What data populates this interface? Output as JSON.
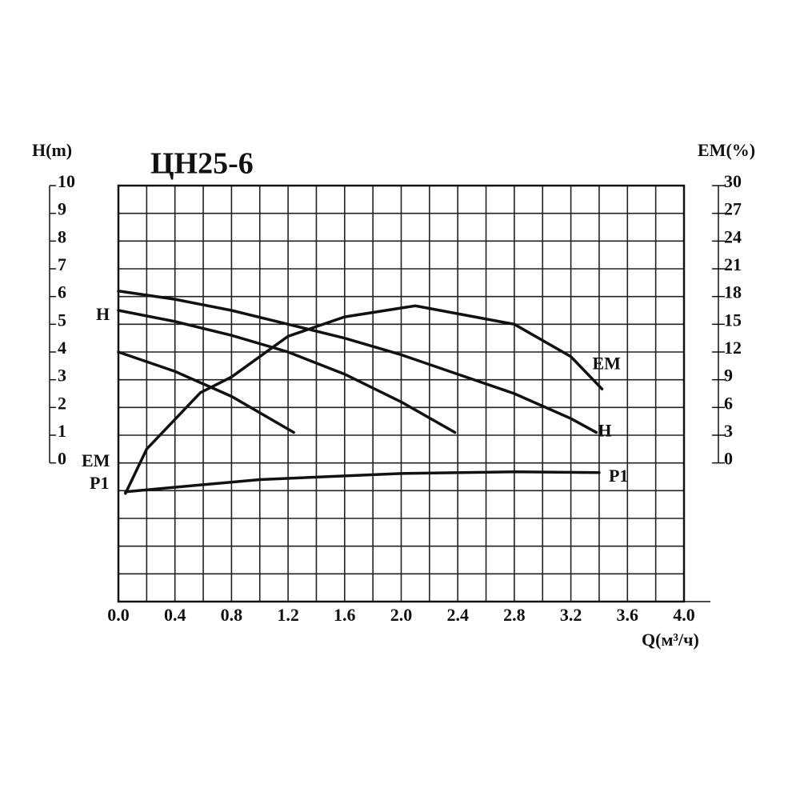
{
  "chart_data": {
    "type": "line",
    "title": "ЦН25-6",
    "y_label": "H(m)",
    "y2_label": "EM(%)",
    "x_label": "Q(м³/ч)",
    "xlim": [
      0,
      4.0
    ],
    "xticks": [
      {
        "value": 0,
        "label": "0.0"
      },
      0.4,
      0.8,
      1.2,
      1.6,
      {
        "value": 2,
        "label": "2.0"
      },
      2.4,
      2.8,
      3.2,
      3.6,
      {
        "value": 4,
        "label": "4.0"
      }
    ],
    "ylim": [
      -5,
      10
    ],
    "yticks": [
      0,
      1,
      2,
      3,
      4,
      5,
      6,
      7,
      8,
      9,
      10
    ],
    "y2lim": [
      -15,
      30
    ],
    "y2ticks": [
      0,
      3,
      6,
      9,
      12,
      15,
      18,
      21,
      24,
      27,
      30
    ],
    "grid": true,
    "color": "#111111",
    "series": [
      {
        "name": "H",
        "color": "#111111",
        "x": [
          0,
          0.4,
          0.8,
          1.2,
          1.6,
          2.0,
          2.4,
          2.8,
          3.2,
          3.38
        ],
        "values": [
          6.2,
          5.9,
          5.5,
          5.0,
          4.5,
          3.9,
          3.2,
          2.5,
          1.6,
          1.1
        ]
      },
      {
        "color": "#111111",
        "x": [
          0,
          0.4,
          0.8,
          1.2,
          1.6,
          2.0,
          2.38
        ],
        "values": [
          5.5,
          5.1,
          4.6,
          4.0,
          3.2,
          2.2,
          1.1
        ]
      },
      {
        "color": "#111111",
        "x": [
          0,
          0.4,
          0.8,
          1.24
        ],
        "values": [
          4.0,
          3.3,
          2.4,
          1.1
        ]
      },
      {
        "name": "EM",
        "color": "#111111",
        "axis": "y2",
        "x": [
          0.05,
          0.2,
          0.58,
          0.8,
          1.2,
          1.6,
          2.1,
          2.8,
          3.2,
          3.42
        ],
        "values": [
          -3.3,
          1.5,
          7.6,
          9.3,
          13.7,
          15.8,
          17.0,
          15.0,
          11.5,
          8.0
        ]
      },
      {
        "name": "P1",
        "color": "#111111",
        "x": [
          0.05,
          1.0,
          2.0,
          2.8,
          3.4
        ],
        "values": [
          -1.04,
          -0.6,
          -0.38,
          -0.32,
          -0.35
        ]
      }
    ],
    "annotations": [
      "H",
      "EM",
      "P1"
    ]
  }
}
